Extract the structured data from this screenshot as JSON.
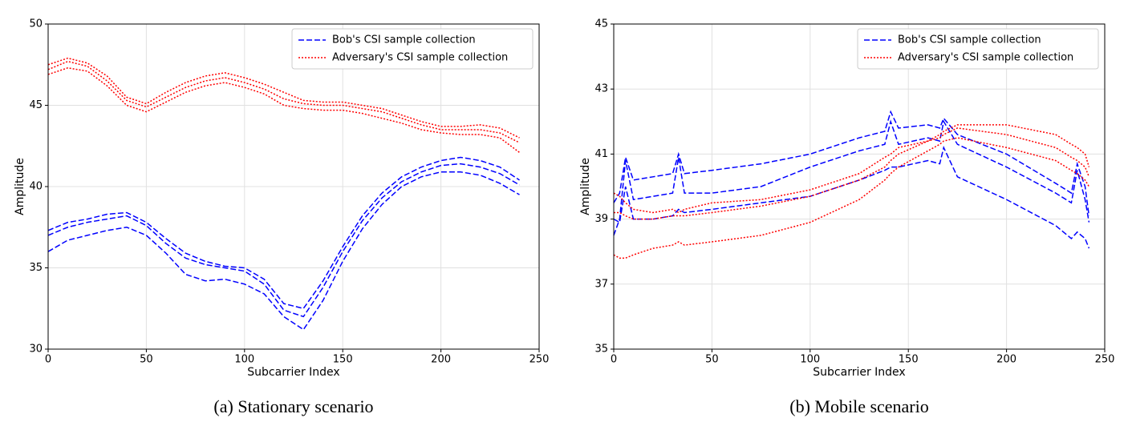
{
  "chart_data": [
    {
      "type": "line",
      "caption": "(a)  Stationary  scenario",
      "xlabel": "Subcarrier Index",
      "ylabel": "Amplitude",
      "xlim": [
        0,
        250
      ],
      "xticks": [
        0,
        50,
        100,
        150,
        200,
        250
      ],
      "ylim": [
        30,
        50
      ],
      "yticks": [
        30,
        35,
        40,
        45,
        50
      ],
      "grid": true,
      "legend": "upper right",
      "x": [
        0,
        10,
        20,
        30,
        40,
        50,
        60,
        70,
        80,
        90,
        100,
        110,
        120,
        130,
        140,
        150,
        160,
        170,
        180,
        190,
        200,
        210,
        220,
        230,
        240
      ],
      "series": [
        {
          "name": "Bob's CSI sample collection",
          "color": "#0000ff",
          "linestyle": "dashed",
          "values": [
            [
              37.3,
              37.8,
              38.0,
              38.3,
              38.4,
              37.8,
              36.8,
              35.9,
              35.4,
              35.1,
              35.0,
              34.3,
              32.8,
              32.5,
              34.2,
              36.3,
              38.2,
              39.6,
              40.6,
              41.2,
              41.6,
              41.8,
              41.6,
              41.2,
              40.4
            ],
            [
              37.0,
              37.5,
              37.8,
              38.0,
              38.2,
              37.6,
              36.5,
              35.6,
              35.2,
              35.0,
              34.8,
              34.0,
              32.4,
              32.0,
              33.8,
              36.0,
              37.9,
              39.3,
              40.3,
              40.9,
              41.3,
              41.4,
              41.2,
              40.8,
              40.1
            ],
            [
              36.0,
              36.7,
              37.0,
              37.3,
              37.5,
              37.0,
              35.9,
              34.6,
              34.2,
              34.3,
              34.0,
              33.4,
              32.0,
              31.2,
              33.0,
              35.4,
              37.4,
              38.9,
              40.0,
              40.6,
              40.9,
              40.9,
              40.7,
              40.2,
              39.5
            ]
          ]
        },
        {
          "name": "Adversary's CSI sample collection",
          "color": "#ff0000",
          "linestyle": "dotted",
          "values": [
            [
              47.5,
              47.9,
              47.6,
              46.8,
              45.5,
              45.1,
              45.8,
              46.4,
              46.8,
              47.0,
              46.7,
              46.3,
              45.8,
              45.3,
              45.2,
              45.2,
              45.0,
              44.8,
              44.4,
              44.0,
              43.7,
              43.7,
              43.8,
              43.6,
              43.0
            ],
            [
              47.2,
              47.7,
              47.4,
              46.5,
              45.3,
              44.9,
              45.5,
              46.1,
              46.5,
              46.7,
              46.4,
              46.0,
              45.4,
              45.1,
              45.0,
              45.0,
              44.8,
              44.6,
              44.2,
              43.8,
              43.5,
              43.5,
              43.5,
              43.3,
              42.7
            ],
            [
              46.9,
              47.3,
              47.1,
              46.2,
              45.0,
              44.6,
              45.2,
              45.8,
              46.2,
              46.4,
              46.1,
              45.7,
              45.0,
              44.8,
              44.7,
              44.7,
              44.5,
              44.2,
              43.9,
              43.5,
              43.3,
              43.2,
              43.2,
              43.0,
              42.1
            ]
          ]
        }
      ]
    },
    {
      "type": "line",
      "caption": "(b)  Mobile  scenario",
      "xlabel": "Subcarrier Index",
      "ylabel": "Amplitude",
      "xlim": [
        0,
        250
      ],
      "xticks": [
        0,
        50,
        100,
        150,
        200,
        250
      ],
      "ylim": [
        35,
        45
      ],
      "yticks": [
        35,
        37,
        39,
        41,
        43,
        45
      ],
      "grid": true,
      "legend": "upper right",
      "x": [
        0,
        3,
        6,
        10,
        20,
        30,
        33,
        36,
        50,
        75,
        100,
        125,
        138,
        141,
        145,
        160,
        166,
        168,
        175,
        200,
        225,
        233,
        236,
        240,
        242
      ],
      "series": [
        {
          "name": "Bob's CSI sample collection",
          "color": "#0000ff",
          "linestyle": "dashed",
          "values": [
            [
              39.5,
              39.8,
              40.9,
              40.2,
              40.3,
              40.4,
              41.0,
              40.4,
              40.5,
              40.7,
              41.0,
              41.5,
              41.7,
              42.3,
              41.8,
              41.9,
              41.8,
              42.1,
              41.6,
              41.0,
              40.1,
              39.8,
              40.7,
              40.0,
              39.1
            ],
            [
              38.5,
              39.0,
              40.8,
              39.6,
              39.7,
              39.8,
              40.9,
              39.8,
              39.8,
              40.0,
              40.6,
              41.1,
              41.3,
              42.0,
              41.3,
              41.5,
              41.4,
              42.0,
              41.3,
              40.6,
              39.8,
              39.5,
              40.5,
              39.6,
              38.9
            ],
            [
              39.0,
              38.9,
              40.0,
              39.0,
              39.0,
              39.1,
              39.3,
              39.2,
              39.3,
              39.5,
              39.7,
              40.2,
              40.5,
              40.6,
              40.6,
              40.8,
              40.7,
              41.2,
              40.3,
              39.6,
              38.8,
              38.4,
              38.6,
              38.4,
              38.1
            ]
          ]
        },
        {
          "name": "Adversary's CSI sample collection",
          "color": "#ff0000",
          "linestyle": "dotted",
          "values": [
            [
              39.8,
              39.7,
              39.5,
              39.3,
              39.2,
              39.3,
              39.2,
              39.3,
              39.5,
              39.6,
              39.9,
              40.4,
              40.9,
              41.0,
              41.2,
              41.4,
              41.6,
              41.7,
              41.9,
              41.9,
              41.6,
              41.3,
              41.2,
              41.0,
              40.6
            ],
            [
              39.2,
              39.2,
              39.1,
              39.0,
              39.0,
              39.1,
              39.1,
              39.1,
              39.2,
              39.4,
              39.7,
              40.2,
              40.6,
              40.8,
              41.0,
              41.4,
              41.5,
              41.6,
              41.8,
              41.6,
              41.2,
              40.9,
              40.8,
              40.6,
              40.3
            ],
            [
              37.9,
              37.8,
              37.8,
              37.9,
              38.1,
              38.2,
              38.3,
              38.2,
              38.3,
              38.5,
              38.9,
              39.6,
              40.2,
              40.4,
              40.6,
              41.1,
              41.3,
              41.4,
              41.5,
              41.2,
              40.8,
              40.5,
              40.4,
              40.2,
              40.0
            ]
          ]
        }
      ]
    }
  ]
}
